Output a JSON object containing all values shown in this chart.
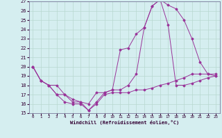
{
  "title": "",
  "xlabel": "Windchill (Refroidissement éolien,°C)",
  "xlim": [
    -0.5,
    23.5
  ],
  "ylim": [
    15,
    27
  ],
  "yticks": [
    15,
    16,
    17,
    18,
    19,
    20,
    21,
    22,
    23,
    24,
    25,
    26,
    27
  ],
  "xticks": [
    0,
    1,
    2,
    3,
    4,
    5,
    6,
    7,
    8,
    9,
    10,
    11,
    12,
    13,
    14,
    15,
    16,
    17,
    18,
    19,
    20,
    21,
    22,
    23
  ],
  "bg_color": "#d5eef0",
  "line_color": "#993399",
  "grid_color": "#b8d8d0",
  "line1_x": [
    0,
    1,
    2,
    3,
    4,
    5,
    6,
    7,
    8,
    9,
    10,
    11,
    12,
    13,
    14,
    15,
    16,
    17,
    18,
    19,
    20,
    21,
    22,
    23
  ],
  "line1_y": [
    20,
    18.5,
    18,
    17,
    16.2,
    16,
    16,
    15.3,
    16.2,
    17.2,
    17.5,
    17.5,
    18.0,
    19.2,
    24.2,
    26.5,
    27.2,
    26.6,
    26.2,
    25.0,
    23.0,
    20.5,
    19.2,
    19.2
  ],
  "line2_x": [
    0,
    1,
    2,
    3,
    4,
    5,
    6,
    7,
    8,
    9,
    10,
    11,
    12,
    13,
    14,
    15,
    16,
    17,
    18,
    19,
    20,
    21,
    22,
    23
  ],
  "line2_y": [
    20,
    18.5,
    18,
    18,
    17,
    16.5,
    16.2,
    16,
    17.2,
    17.2,
    17.5,
    21.8,
    22.0,
    23.5,
    24.2,
    26.5,
    27.2,
    24.5,
    18.0,
    18.0,
    18.2,
    18.5,
    18.8,
    19.0
  ],
  "line3_x": [
    0,
    1,
    2,
    3,
    4,
    5,
    6,
    7,
    8,
    9,
    10,
    11,
    12,
    13,
    14,
    15,
    16,
    17,
    18,
    19,
    20,
    21,
    22,
    23
  ],
  "line3_y": [
    20,
    18.5,
    18,
    17.0,
    17.0,
    16.2,
    16.2,
    15.3,
    16.0,
    17.0,
    17.2,
    17.2,
    17.2,
    17.5,
    17.5,
    17.7,
    18.0,
    18.2,
    18.5,
    18.8,
    19.2,
    19.2,
    19.2,
    19.0
  ]
}
